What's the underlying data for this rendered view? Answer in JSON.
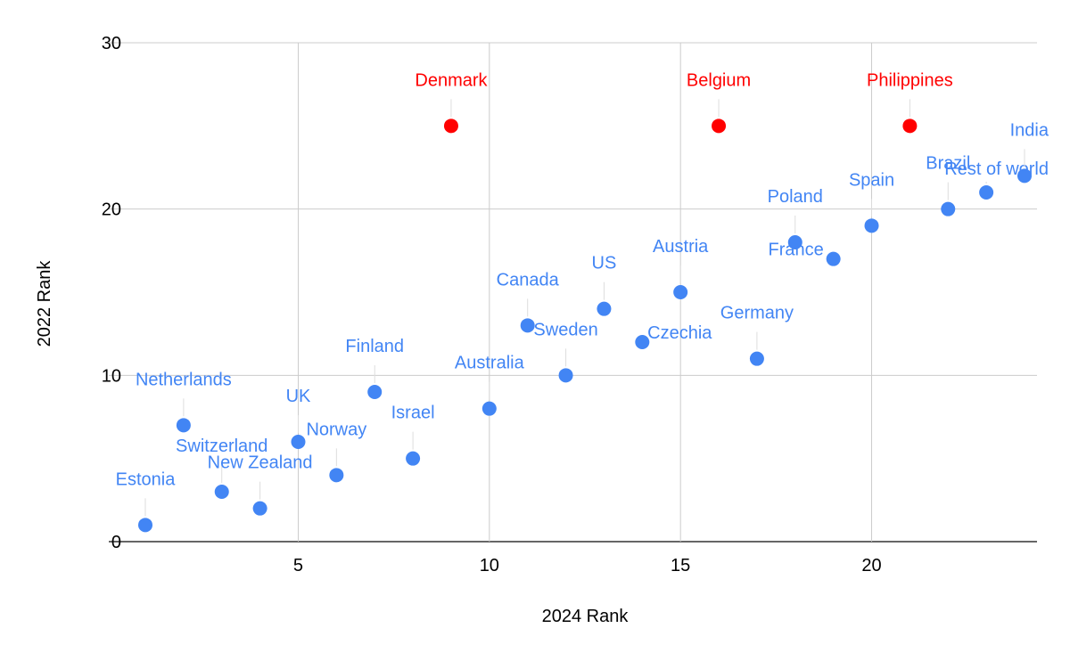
{
  "chart_data": {
    "type": "scatter",
    "title": "",
    "xlabel": "2024 Rank",
    "ylabel": "2022 Rank",
    "xlim": [
      1,
      24
    ],
    "ylim": [
      0,
      30
    ],
    "x_ticks": [
      5,
      10,
      15,
      20
    ],
    "y_ticks": [
      0,
      10,
      20,
      30
    ],
    "grid": true,
    "legend": "none",
    "colors": {
      "normal": "#4285f4",
      "highlight": "#ff0000"
    },
    "points": [
      {
        "label": "Estonia",
        "x": 1,
        "y": 1,
        "highlight": false
      },
      {
        "label": "Netherlands",
        "x": 2,
        "y": 7,
        "highlight": false
      },
      {
        "label": "Switzerland",
        "x": 3,
        "y": 3,
        "highlight": false
      },
      {
        "label": "New Zealand",
        "x": 4,
        "y": 2,
        "highlight": false
      },
      {
        "label": "UK",
        "x": 5,
        "y": 6,
        "highlight": false
      },
      {
        "label": "Norway",
        "x": 6,
        "y": 4,
        "highlight": false
      },
      {
        "label": "Finland",
        "x": 7,
        "y": 9,
        "highlight": false
      },
      {
        "label": "Israel",
        "x": 8,
        "y": 5,
        "highlight": false
      },
      {
        "label": "Denmark",
        "x": 9,
        "y": 25,
        "highlight": true
      },
      {
        "label": "Australia",
        "x": 10,
        "y": 8,
        "highlight": false
      },
      {
        "label": "Canada",
        "x": 11,
        "y": 13,
        "highlight": false
      },
      {
        "label": "Sweden",
        "x": 12,
        "y": 10,
        "highlight": false
      },
      {
        "label": "US",
        "x": 13,
        "y": 14,
        "highlight": false
      },
      {
        "label": "Czechia",
        "x": 14,
        "y": 12,
        "highlight": false
      },
      {
        "label": "Austria",
        "x": 15,
        "y": 15,
        "highlight": false
      },
      {
        "label": "Belgium",
        "x": 16,
        "y": 25,
        "highlight": true
      },
      {
        "label": "Germany",
        "x": 17,
        "y": 11,
        "highlight": false
      },
      {
        "label": "Poland",
        "x": 18,
        "y": 18,
        "highlight": false
      },
      {
        "label": "France",
        "x": 19,
        "y": 17,
        "highlight": false
      },
      {
        "label": "Spain",
        "x": 20,
        "y": 19,
        "highlight": false
      },
      {
        "label": "Philippines",
        "x": 21,
        "y": 25,
        "highlight": true
      },
      {
        "label": "Brazil",
        "x": 22,
        "y": 20,
        "highlight": false
      },
      {
        "label": "Rest of world",
        "x": 23,
        "y": 21,
        "highlight": false
      },
      {
        "label": "India",
        "x": 24,
        "y": 22,
        "highlight": false
      }
    ]
  }
}
